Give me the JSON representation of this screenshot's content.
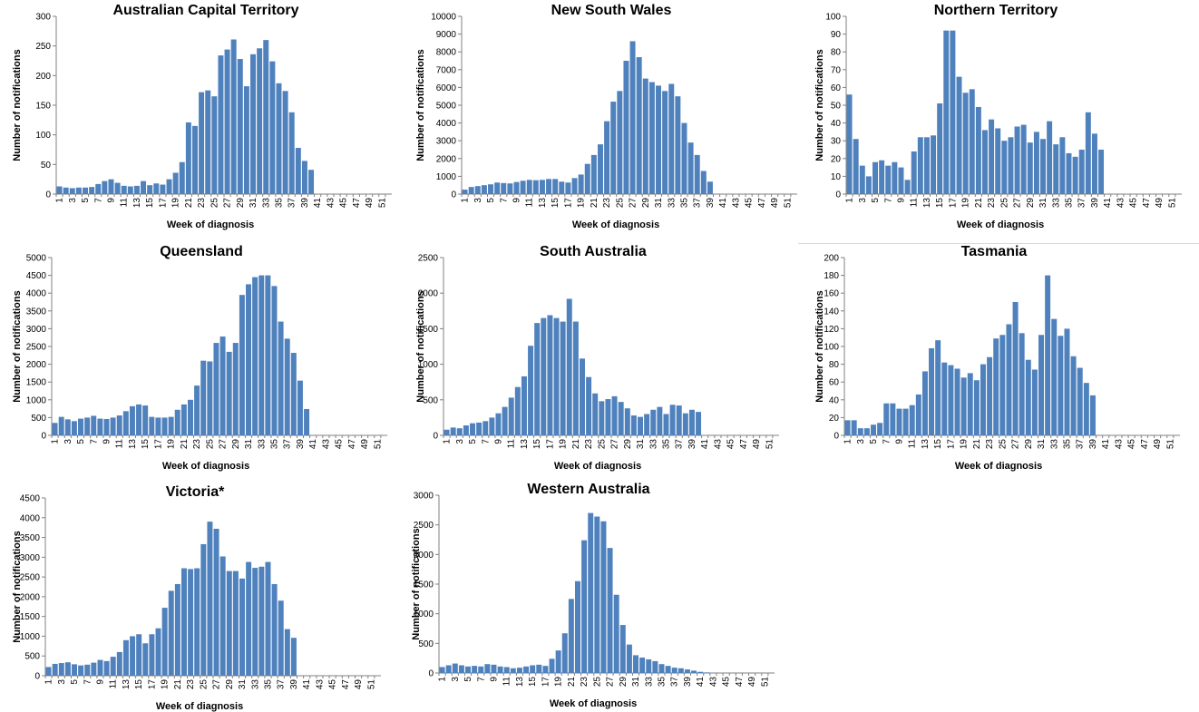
{
  "colors": {
    "bar": "#4f81bd",
    "axis": "#808080"
  },
  "chart_data": [
    {
      "type": "bar",
      "title": "Australian Capital Territory",
      "xlabel": "Week of diagnosis",
      "ylabel": "Number of notifications",
      "ylim": [
        0,
        300
      ],
      "yticks": [
        0,
        50,
        100,
        150,
        200,
        250,
        300
      ],
      "x": [
        1,
        2,
        3,
        4,
        5,
        6,
        7,
        8,
        9,
        10,
        11,
        12,
        13,
        14,
        15,
        16,
        17,
        18,
        19,
        20,
        21,
        22,
        23,
        24,
        25,
        26,
        27,
        28,
        29,
        30,
        31,
        32,
        33,
        34,
        35,
        36,
        37,
        38,
        39,
        40,
        41,
        42,
        43,
        44,
        45,
        46,
        47,
        48,
        49,
        50,
        51,
        52
      ],
      "values": [
        13,
        11,
        10,
        11,
        11,
        12,
        17,
        22,
        25,
        19,
        14,
        13,
        14,
        22,
        15,
        18,
        16,
        25,
        36,
        54,
        121,
        115,
        172,
        175,
        165,
        234,
        244,
        261,
        228,
        182,
        236,
        246,
        260,
        224,
        187,
        174,
        138,
        78,
        56,
        41,
        0,
        0,
        0,
        0,
        0,
        0,
        0,
        0,
        0,
        0,
        0,
        0
      ]
    },
    {
      "type": "bar",
      "title": "New South Wales",
      "xlabel": "Week of diagnosis",
      "ylabel": "Number of notifications",
      "ylim": [
        0,
        10000
      ],
      "yticks": [
        0,
        1000,
        2000,
        3000,
        4000,
        5000,
        6000,
        7000,
        8000,
        9000,
        10000
      ],
      "x": [
        1,
        2,
        3,
        4,
        5,
        6,
        7,
        8,
        9,
        10,
        11,
        12,
        13,
        14,
        15,
        16,
        17,
        18,
        19,
        20,
        21,
        22,
        23,
        24,
        25,
        26,
        27,
        28,
        29,
        30,
        31,
        32,
        33,
        34,
        35,
        36,
        37,
        38,
        39,
        40,
        41,
        42,
        43,
        44,
        45,
        46,
        47,
        48,
        49,
        50,
        51,
        52
      ],
      "values": [
        250,
        400,
        450,
        500,
        550,
        650,
        620,
        600,
        680,
        750,
        800,
        780,
        800,
        850,
        850,
        700,
        650,
        900,
        1100,
        1700,
        2200,
        2800,
        4100,
        5200,
        5800,
        7500,
        8600,
        7700,
        6500,
        6300,
        6100,
        5800,
        6200,
        5500,
        4000,
        2900,
        2200,
        1300,
        700,
        0,
        0,
        0,
        0,
        0,
        0,
        0,
        0,
        0,
        0,
        0,
        0,
        0
      ]
    },
    {
      "type": "bar",
      "title": "Northern Territory",
      "xlabel": "Week of diagnosis",
      "ylabel": "Number of notifications",
      "ylim": [
        0,
        100
      ],
      "yticks": [
        0,
        10,
        20,
        30,
        40,
        50,
        60,
        70,
        80,
        90,
        100
      ],
      "x": [
        1,
        2,
        3,
        4,
        5,
        6,
        7,
        8,
        9,
        10,
        11,
        12,
        13,
        14,
        15,
        16,
        17,
        18,
        19,
        20,
        21,
        22,
        23,
        24,
        25,
        26,
        27,
        28,
        29,
        30,
        31,
        32,
        33,
        34,
        35,
        36,
        37,
        38,
        39,
        40,
        41,
        42,
        43,
        44,
        45,
        46,
        47,
        48,
        49,
        50,
        51,
        52
      ],
      "values": [
        56,
        31,
        16,
        10,
        18,
        19,
        16,
        18,
        15,
        8,
        24,
        32,
        32,
        33,
        51,
        92,
        92,
        66,
        57,
        59,
        49,
        36,
        42,
        37,
        30,
        32,
        38,
        39,
        29,
        35,
        31,
        41,
        28,
        32,
        23,
        21,
        25,
        46,
        34,
        25,
        0,
        0,
        0,
        0,
        0,
        0,
        0,
        0,
        0,
        0,
        0,
        0
      ]
    },
    {
      "type": "bar",
      "title": "Queensland",
      "xlabel": "Week of diagnosis",
      "ylabel": "Number of notifications",
      "ylim": [
        0,
        5000
      ],
      "yticks": [
        0,
        500,
        1000,
        1500,
        2000,
        2500,
        3000,
        3500,
        4000,
        4500,
        5000
      ],
      "x": [
        1,
        2,
        3,
        4,
        5,
        6,
        7,
        8,
        9,
        10,
        11,
        12,
        13,
        14,
        15,
        16,
        17,
        18,
        19,
        20,
        21,
        22,
        23,
        24,
        25,
        26,
        27,
        28,
        29,
        30,
        31,
        32,
        33,
        34,
        35,
        36,
        37,
        38,
        39,
        40,
        41,
        42,
        43,
        44,
        45,
        46,
        47,
        48,
        49,
        50,
        51,
        52
      ],
      "values": [
        350,
        520,
        450,
        400,
        470,
        500,
        550,
        470,
        460,
        500,
        560,
        680,
        820,
        870,
        840,
        520,
        500,
        500,
        520,
        720,
        870,
        1000,
        1400,
        2100,
        2080,
        2600,
        2780,
        2350,
        2600,
        3950,
        4250,
        4450,
        4500,
        4500,
        4200,
        3200,
        2720,
        2320,
        1540,
        740,
        0,
        0,
        0,
        0,
        0,
        0,
        0,
        0,
        0,
        0,
        0,
        0
      ]
    },
    {
      "type": "bar",
      "title": "South Australia",
      "xlabel": "Week of diagnosis",
      "ylabel": "Number of notifications",
      "ylim": [
        0,
        2500
      ],
      "yticks": [
        0,
        500,
        1000,
        1500,
        2000,
        2500
      ],
      "x": [
        1,
        2,
        3,
        4,
        5,
        6,
        7,
        8,
        9,
        10,
        11,
        12,
        13,
        14,
        15,
        16,
        17,
        18,
        19,
        20,
        21,
        22,
        23,
        24,
        25,
        26,
        27,
        28,
        29,
        30,
        31,
        32,
        33,
        34,
        35,
        36,
        37,
        38,
        39,
        40,
        41,
        42,
        43,
        44,
        45,
        46,
        47,
        48,
        49,
        50,
        51,
        52
      ],
      "values": [
        80,
        110,
        100,
        140,
        170,
        180,
        200,
        250,
        310,
        400,
        530,
        680,
        830,
        1260,
        1580,
        1650,
        1690,
        1650,
        1600,
        1920,
        1600,
        1080,
        820,
        590,
        480,
        510,
        550,
        470,
        380,
        280,
        260,
        300,
        360,
        400,
        300,
        430,
        420,
        310,
        360,
        330,
        0,
        0,
        0,
        0,
        0,
        0,
        0,
        0,
        0,
        0,
        0,
        0
      ]
    },
    {
      "type": "bar",
      "title": "Tasmania",
      "xlabel": "Week of diagnosis",
      "ylabel": "Number of notifications",
      "ylim": [
        0,
        200
      ],
      "yticks": [
        0,
        20,
        40,
        60,
        80,
        100,
        120,
        140,
        160,
        180,
        200
      ],
      "x": [
        1,
        2,
        3,
        4,
        5,
        6,
        7,
        8,
        9,
        10,
        11,
        12,
        13,
        14,
        15,
        16,
        17,
        18,
        19,
        20,
        21,
        22,
        23,
        24,
        25,
        26,
        27,
        28,
        29,
        30,
        31,
        32,
        33,
        34,
        35,
        36,
        37,
        38,
        39,
        40,
        41,
        42,
        43,
        44,
        45,
        46,
        47,
        48,
        49,
        50,
        51,
        52
      ],
      "values": [
        17,
        17,
        8,
        8,
        12,
        14,
        36,
        36,
        30,
        30,
        34,
        46,
        72,
        98,
        107,
        82,
        79,
        75,
        65,
        70,
        62,
        80,
        88,
        109,
        113,
        125,
        150,
        115,
        85,
        74,
        113,
        180,
        131,
        112,
        120,
        89,
        76,
        59,
        45,
        0,
        0,
        0,
        0,
        0,
        0,
        0,
        0,
        0,
        0,
        0,
        0,
        0
      ]
    },
    {
      "type": "bar",
      "title": "Victoria*",
      "xlabel": "Week of diagnosis",
      "ylabel": "Number of notifications",
      "ylim": [
        0,
        4500
      ],
      "yticks": [
        0,
        500,
        1000,
        1500,
        2000,
        2500,
        3000,
        3500,
        4000,
        4500
      ],
      "x": [
        1,
        2,
        3,
        4,
        5,
        6,
        7,
        8,
        9,
        10,
        11,
        12,
        13,
        14,
        15,
        16,
        17,
        18,
        19,
        20,
        21,
        22,
        23,
        24,
        25,
        26,
        27,
        28,
        29,
        30,
        31,
        32,
        33,
        34,
        35,
        36,
        37,
        38,
        39,
        40,
        41,
        42,
        43,
        44,
        45,
        46,
        47,
        48,
        49,
        50,
        51,
        52
      ],
      "values": [
        220,
        300,
        320,
        340,
        290,
        260,
        280,
        330,
        400,
        370,
        480,
        600,
        900,
        1000,
        1050,
        820,
        1050,
        1200,
        1720,
        2150,
        2320,
        2720,
        2700,
        2720,
        3330,
        3900,
        3720,
        3020,
        2650,
        2650,
        2460,
        2880,
        2730,
        2760,
        2880,
        2320,
        1900,
        1180,
        960,
        0,
        0,
        0,
        0,
        0,
        0,
        0,
        0,
        0,
        0,
        0,
        0,
        0
      ]
    },
    {
      "type": "bar",
      "title": "Western Australia",
      "xlabel": "Week of diagnosis",
      "ylabel": "Number of notifications",
      "ylim": [
        0,
        3000
      ],
      "yticks": [
        0,
        500,
        1000,
        1500,
        2000,
        2500,
        3000
      ],
      "x": [
        1,
        2,
        3,
        4,
        5,
        6,
        7,
        8,
        9,
        10,
        11,
        12,
        13,
        14,
        15,
        16,
        17,
        18,
        19,
        20,
        21,
        22,
        23,
        24,
        25,
        26,
        27,
        28,
        29,
        30,
        31,
        32,
        33,
        34,
        35,
        36,
        37,
        38,
        39,
        40,
        41,
        42,
        43,
        44,
        45,
        46,
        47,
        48,
        49,
        50,
        51,
        52
      ],
      "values": [
        100,
        130,
        160,
        130,
        110,
        120,
        110,
        150,
        140,
        110,
        100,
        80,
        90,
        110,
        130,
        140,
        120,
        240,
        380,
        670,
        1250,
        1550,
        2240,
        2700,
        2640,
        2560,
        2110,
        1320,
        810,
        480,
        300,
        260,
        230,
        200,
        150,
        120,
        90,
        80,
        60,
        40,
        20,
        10,
        0,
        0,
        0,
        0,
        0,
        0,
        0,
        0,
        0,
        0
      ]
    }
  ]
}
